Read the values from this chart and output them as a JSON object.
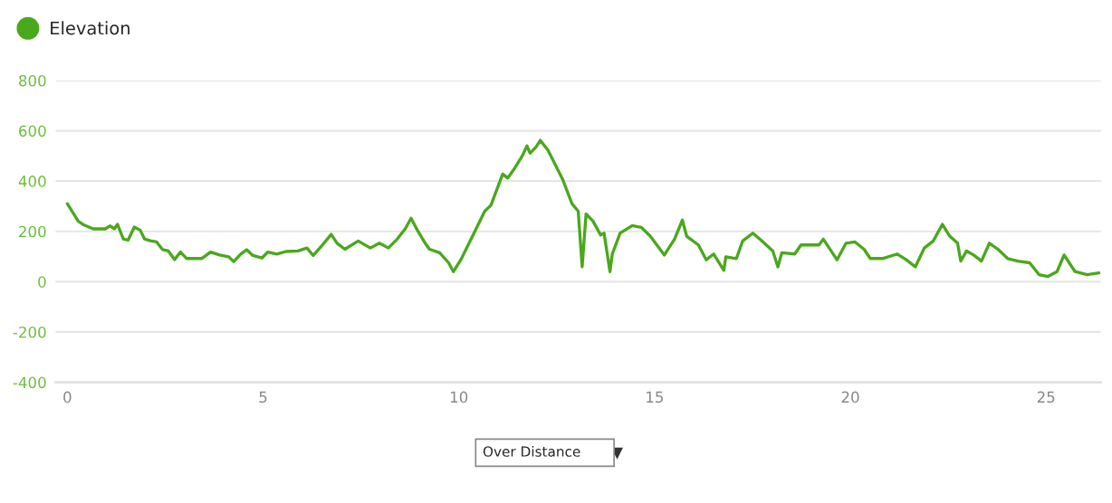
{
  "chart_data": {
    "type": "line",
    "xlim": [
      -0.3,
      26.4
    ],
    "xticks": [
      0,
      5,
      10,
      15,
      20,
      25
    ],
    "ylim": [
      -400,
      800
    ],
    "yticks": [
      -400,
      -200,
      0,
      200,
      400,
      600,
      800
    ],
    "grid": "y",
    "legend": "top left",
    "marker": "none",
    "line_style": "solid",
    "annotations": [
      "Over Distance"
    ],
    "series": [
      {
        "name": "Elevation",
        "color": "#4aa81c",
        "x": [
          0,
          0.28,
          0.43,
          0.66,
          0.97,
          1.09,
          1.2,
          1.28,
          1.43,
          1.55,
          1.71,
          1.86,
          1.97,
          2.12,
          2.28,
          2.43,
          2.58,
          2.74,
          2.89,
          3.05,
          3.43,
          3.66,
          3.89,
          4.12,
          4.25,
          4.43,
          4.58,
          4.74,
          4.97,
          5.12,
          5.35,
          5.58,
          5.89,
          6.12,
          6.28,
          6.51,
          6.74,
          6.89,
          7.09,
          7.43,
          7.74,
          7.97,
          8.2,
          8.43,
          8.63,
          8.78,
          8.94,
          9.12,
          9.25,
          9.51,
          9.74,
          9.86,
          10.05,
          10.35,
          10.66,
          10.82,
          11.12,
          11.25,
          11.43,
          11.62,
          11.74,
          11.82,
          11.97,
          12.08,
          12.28,
          12.66,
          12.89,
          13.05,
          13.15,
          13.25,
          13.43,
          13.62,
          13.71,
          13.86,
          13.92,
          14.12,
          14.43,
          14.66,
          14.89,
          15.25,
          15.51,
          15.71,
          15.82,
          16.12,
          16.32,
          16.51,
          16.77,
          16.82,
          17.09,
          17.25,
          17.51,
          17.74,
          18.02,
          18.15,
          18.25,
          18.58,
          18.74,
          19.2,
          19.31,
          19.66,
          19.89,
          20.12,
          20.35,
          20.51,
          20.82,
          21.2,
          21.43,
          21.66,
          21.89,
          22.12,
          22.35,
          22.54,
          22.74,
          22.82,
          22.97,
          23.15,
          23.35,
          23.55,
          23.77,
          24.02,
          24.28,
          24.58,
          24.82,
          25.05,
          25.28,
          25.46,
          25.74,
          26.05,
          26.35
        ],
        "values": [
          310,
          240,
          225,
          210,
          210,
          222,
          210,
          228,
          170,
          165,
          217,
          205,
          170,
          163,
          158,
          128,
          122,
          88,
          118,
          92,
          92,
          118,
          106,
          99,
          80,
          110,
          127,
          104,
          94,
          118,
          110,
          120,
          122,
          134,
          104,
          145,
          188,
          153,
          129,
          162,
          134,
          153,
          134,
          170,
          210,
          252,
          205,
          158,
          129,
          115,
          75,
          40,
          87,
          181,
          280,
          304,
          428,
          412,
          452,
          500,
          540,
          511,
          535,
          562,
          522,
          404,
          310,
          280,
          59,
          270,
          240,
          186,
          193,
          40,
          110,
          193,
          223,
          216,
          181,
          106,
          169,
          245,
          181,
          146,
          87,
          110,
          45,
          99,
          92,
          162,
          193,
          162,
          122,
          59,
          115,
          110,
          146,
          146,
          169,
          87,
          153,
          158,
          129,
          92,
          92,
          110,
          87,
          59,
          134,
          162,
          228,
          181,
          153,
          82,
          122,
          106,
          82,
          153,
          129,
          92,
          82,
          75,
          28,
          21,
          40,
          106,
          40,
          28,
          35
        ]
      }
    ]
  }
}
